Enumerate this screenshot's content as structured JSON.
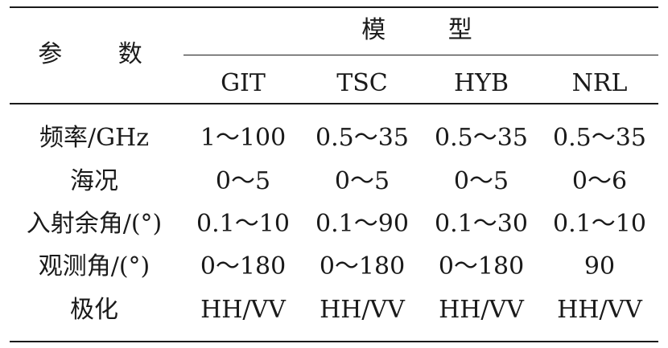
{
  "header": {
    "param_label": "参 数",
    "group_label": "模 型",
    "models": [
      "GIT",
      "TSC",
      "HYB",
      "NRL"
    ]
  },
  "rows": [
    {
      "param": "频率/GHz",
      "values": [
        "1～100",
        "0.5～35",
        "0.5～35",
        "0.5～35"
      ]
    },
    {
      "param": "海况",
      "values": [
        "0～5",
        "0～5",
        "0～5",
        "0～6"
      ]
    },
    {
      "param": "入射余角/(°)",
      "values": [
        "0.1～10",
        "0.1～90",
        "0.1～30",
        "0.1～10"
      ]
    },
    {
      "param": "观测角/(°)",
      "values": [
        "0～180",
        "0～180",
        "0～180",
        "90"
      ]
    },
    {
      "param": "极化",
      "values": [
        "HH/VV",
        "HH/VV",
        "HH/VV",
        "HH/VV"
      ]
    }
  ]
}
